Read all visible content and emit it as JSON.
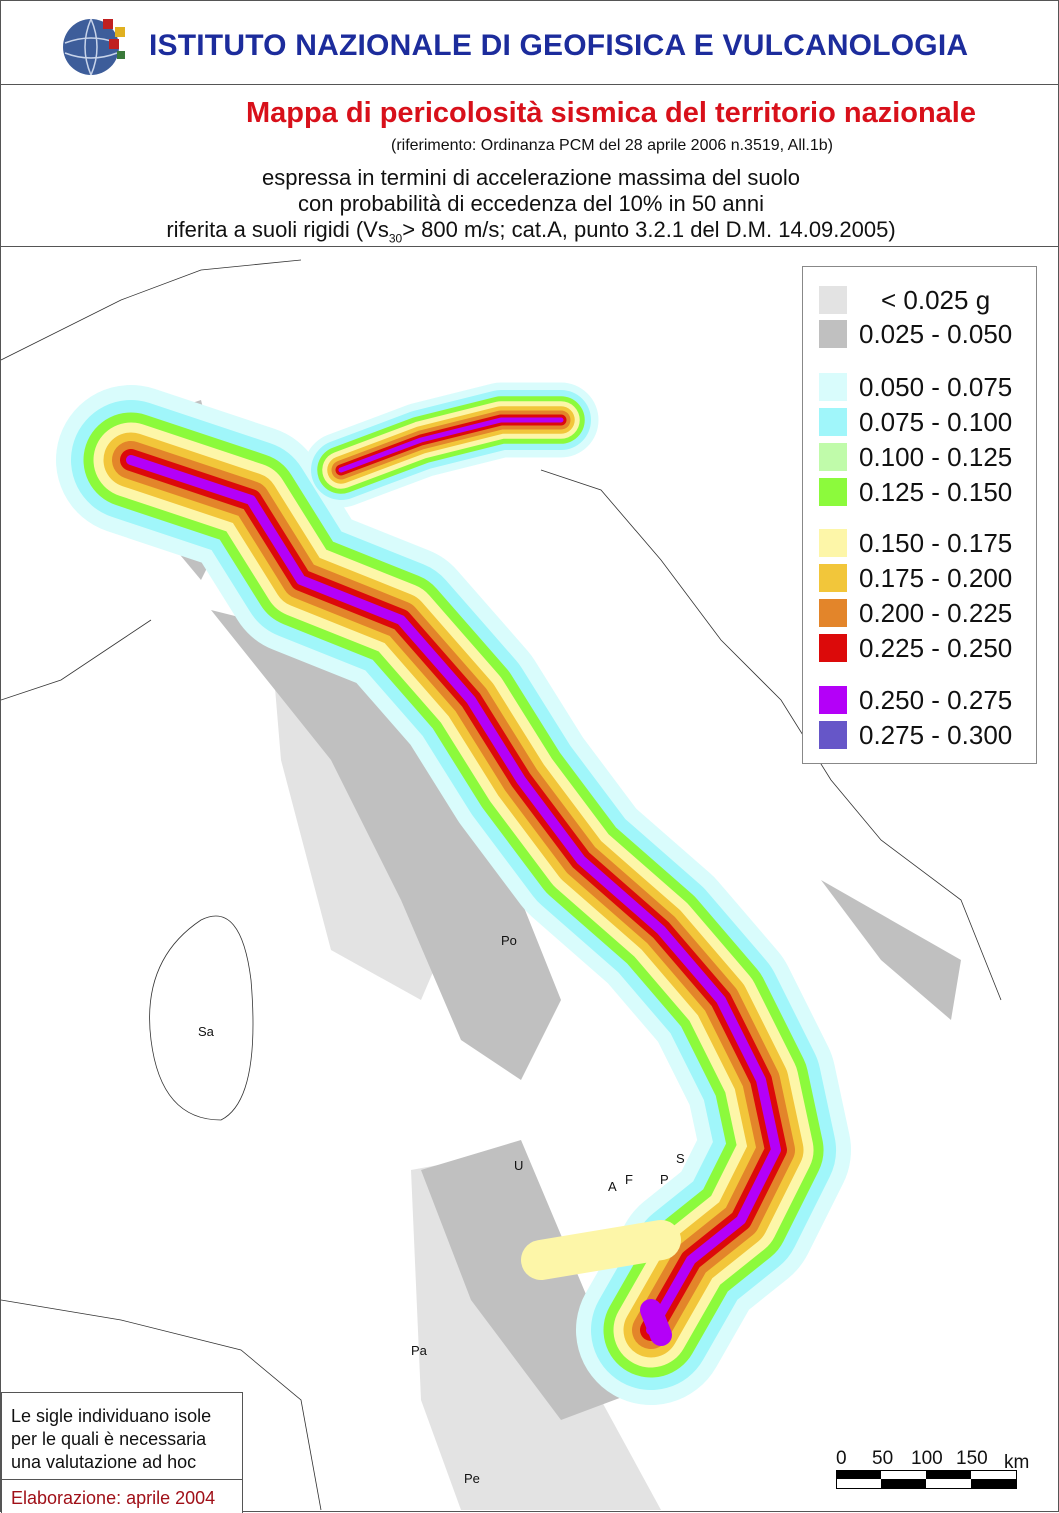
{
  "header": {
    "institute": "ISTITUTO NAZIONALE DI GEOFISICA E VULCANOLOGIA",
    "title": "Mappa di pericolosità sismica del territorio nazionale",
    "reference": "(riferimento: Ordinanza PCM del 28 aprile 2006 n.3519, All.1b)",
    "line1": "espressa in termini di accelerazione massima del suolo",
    "line2": "con probabilità di eccedenza del 10% in 50 anni",
    "line3_a": "riferita a suoli rigidi (Vs",
    "line3_sub": "30",
    "line3_b": "> 800 m/s; cat.A, punto 3.2.1 del D.M. 14.09.2005)",
    "title_color": "#d8101a",
    "institute_color": "#1c2c9c"
  },
  "legend": [
    {
      "label": "< 0.025 g",
      "color": "#e3e3e3"
    },
    {
      "label": "0.025 - 0.050",
      "color": "#c0c0c0"
    },
    {
      "label": "0.050 - 0.075",
      "color": "#d9fcfc"
    },
    {
      "label": "0.075 - 0.100",
      "color": "#a0f6fa"
    },
    {
      "label": "0.100 - 0.125",
      "color": "#c0fbaa"
    },
    {
      "label": "0.125 - 0.150",
      "color": "#8cfa3c"
    },
    {
      "label": "0.150 - 0.175",
      "color": "#fdf6a8"
    },
    {
      "label": "0.175 - 0.200",
      "color": "#f2c63a"
    },
    {
      "label": "0.200 - 0.225",
      "color": "#e3852a"
    },
    {
      "label": "0.225 - 0.250",
      "color": "#dc0a0a"
    },
    {
      "label": "0.250 - 0.275",
      "color": "#b400f8"
    },
    {
      "label": "0.275 - 0.300",
      "color": "#6656c8"
    }
  ],
  "islands": [
    "Po",
    "Sa",
    "U",
    "S",
    "A",
    "F",
    "P",
    "Pa",
    "Pe"
  ],
  "note": {
    "text": [
      "Le sigle individuano isole",
      "per le quali è necessaria",
      "una valutazione ad hoc"
    ],
    "elaboration": "Elaborazione: aprile 2004"
  },
  "scale": {
    "ticks": [
      "0",
      "50",
      "100",
      "150"
    ],
    "unit": "km"
  }
}
